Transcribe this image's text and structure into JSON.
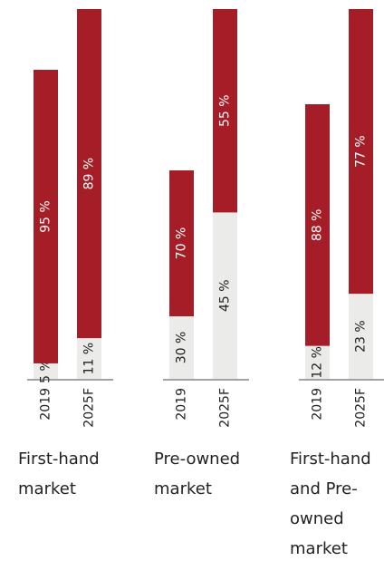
{
  "chart_data": [
    {
      "type": "bar",
      "stacked": true,
      "title": "First-hand market",
      "categories": [
        "2019",
        "2025F"
      ],
      "series": [
        {
          "color": "#ebebea",
          "values": [
            5,
            11
          ],
          "value_labels": [
            "5 %",
            "11 %"
          ]
        },
        {
          "color": "#a51d26",
          "values": [
            95,
            89
          ],
          "value_labels": [
            "95 %",
            "89 %"
          ]
        }
      ]
    },
    {
      "type": "bar",
      "stacked": true,
      "title": "Pre-owned market",
      "categories": [
        "2019",
        "2025F"
      ],
      "series": [
        {
          "color": "#ebebea",
          "values": [
            30,
            45
          ],
          "value_labels": [
            "30 %",
            "45 %"
          ]
        },
        {
          "color": "#a51d26",
          "values": [
            70,
            55
          ],
          "value_labels": [
            "70 %",
            "55 %"
          ]
        }
      ]
    },
    {
      "type": "bar",
      "stacked": true,
      "title": "First-hand and Pre-owned market",
      "categories": [
        "2019",
        "2025F"
      ],
      "series": [
        {
          "color": "#ebebea",
          "values": [
            12,
            23
          ],
          "value_labels": [
            "12 %",
            "23 %"
          ]
        },
        {
          "color": "#a51d26",
          "values": [
            88,
            77
          ],
          "value_labels": [
            "88 %",
            "77 %"
          ]
        }
      ]
    }
  ]
}
